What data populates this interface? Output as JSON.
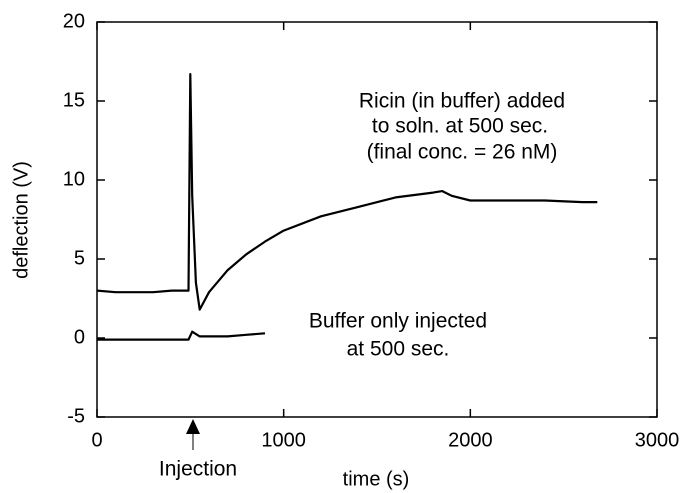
{
  "chart_data": {
    "type": "line",
    "xlabel": "time (s)",
    "ylabel": "deflection (V)",
    "xlim": [
      0,
      3000
    ],
    "ylim": [
      -5,
      20
    ],
    "xticks": [
      0,
      1000,
      2000,
      3000
    ],
    "yticks": [
      -5,
      0,
      5,
      10,
      15,
      20
    ],
    "annotations": {
      "ricin": [
        "Ricin (in buffer) added",
        "to soln. at 500 sec.",
        "(final conc. = 26 nM)"
      ],
      "buffer": [
        "Buffer only injected",
        "at 500 sec."
      ],
      "injection": "Injection"
    },
    "series": [
      {
        "color": "#000000",
        "x": [
          0,
          100,
          200,
          300,
          400,
          490,
          500,
          510,
          530,
          550,
          600,
          700,
          800,
          900,
          1000,
          1200,
          1400,
          1600,
          1800,
          1850,
          1900,
          2000,
          2200,
          2400,
          2600,
          2680
        ],
        "values": [
          3.0,
          2.9,
          2.9,
          2.9,
          3.0,
          3.0,
          16.7,
          9.0,
          3.5,
          1.8,
          2.9,
          4.3,
          5.3,
          6.1,
          6.8,
          7.7,
          8.3,
          8.9,
          9.2,
          9.3,
          9.0,
          8.7,
          8.7,
          8.7,
          8.6,
          8.6
        ]
      },
      {
        "color": "#000000",
        "x": [
          0,
          100,
          200,
          300,
          400,
          490,
          510,
          550,
          600,
          700,
          800,
          900
        ],
        "values": [
          -0.1,
          -0.1,
          -0.1,
          -0.1,
          -0.1,
          -0.1,
          0.4,
          0.1,
          0.1,
          0.1,
          0.2,
          0.3
        ]
      }
    ]
  }
}
